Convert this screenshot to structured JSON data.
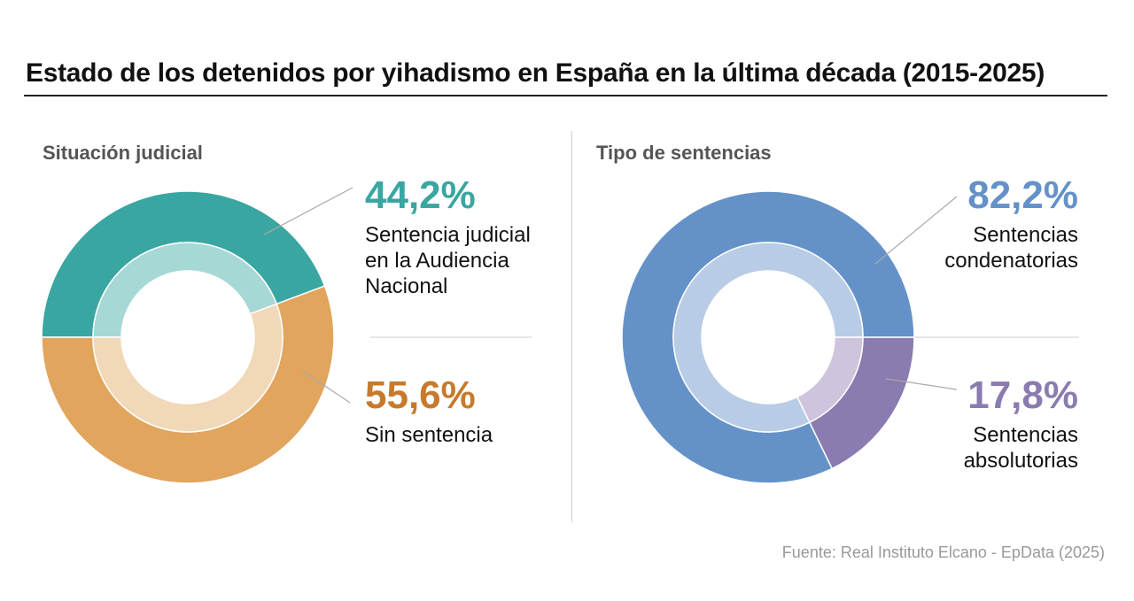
{
  "title": "Estado de los detenidos por yihadismo en España en la última década (2015-2025)",
  "source": "Fuente: Real Instituto Elcano - EpData (2025)",
  "chart_data": [
    {
      "type": "pie",
      "subtitle": "Situación judicial",
      "slices": [
        {
          "label": "Sentencia judicial en la Audiencia Nacional",
          "value": 44.2,
          "value_label": "44,2%",
          "color": "#3aa6a1",
          "inner_color": "#a6d8d6"
        },
        {
          "label": "Sin sentencia",
          "value": 55.6,
          "value_label": "55,6%",
          "color": "#e1a55e",
          "inner_color": "#f1d8b8"
        }
      ]
    },
    {
      "type": "pie",
      "subtitle": "Tipo de sentencias",
      "slices": [
        {
          "label": "Sentencias condenatorias",
          "value": 82.2,
          "value_label": "82,2%",
          "color": "#6492c8",
          "inner_color": "#b8cce6"
        },
        {
          "label": "Sentencias absolutorias",
          "value": 17.8,
          "value_label": "17,8%",
          "color": "#8a7bb0",
          "inner_color": "#cfc4dd"
        }
      ]
    }
  ]
}
